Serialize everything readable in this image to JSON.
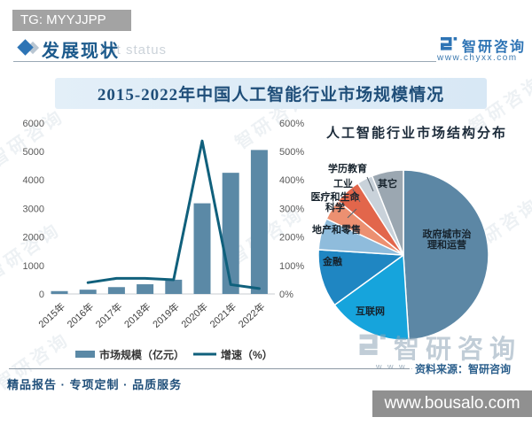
{
  "badge": {
    "text": "TG: MYYJJPP"
  },
  "header": {
    "title": "发展现状"
  },
  "brand": {
    "name": "智研咨询",
    "url": "www.chyxx.com"
  },
  "banner": {
    "title": "2015-2022年中国人工智能行业市场规模情况"
  },
  "chart_data": [
    {
      "type": "bar",
      "subtype": "bar-line-combo",
      "categories": [
        "2015年",
        "2016年",
        "2017年",
        "2018年",
        "2019年",
        "2020年",
        "2021年",
        "2022年"
      ],
      "series": [
        {
          "name": "市场规模（亿元）",
          "type": "bar",
          "axis": "left",
          "values": [
            100,
            150,
            240,
            340,
            500,
            3180,
            4250,
            5050
          ],
          "color": "#5b89a6"
        },
        {
          "name": "增速（%）",
          "type": "line",
          "axis": "right",
          "values": [
            null,
            40,
            55,
            55,
            50,
            540,
            33,
            19
          ],
          "color": "#10607c"
        }
      ],
      "left_axis": {
        "min": 0,
        "max": 6000,
        "ticks": [
          "0",
          "1000",
          "2000",
          "3000",
          "4000",
          "5000",
          "6000"
        ]
      },
      "right_axis": {
        "min": 0,
        "max": 600,
        "ticks": [
          "0%",
          "100%",
          "200%",
          "300%",
          "400%",
          "500%",
          "600%"
        ]
      },
      "grid": false,
      "legend_position": "bottom"
    },
    {
      "type": "pie",
      "title": "人工智能行业市场结构分布",
      "slices": [
        {
          "label": "政府城市治理和运营",
          "value": 49,
          "color": "#5c87a5"
        },
        {
          "label": "互联网",
          "value": 16,
          "color": "#16a4dc"
        },
        {
          "label": "金融",
          "value": 11,
          "color": "#1f86c2"
        },
        {
          "label": "地产和零售",
          "value": 6,
          "color": "#8fbcdc"
        },
        {
          "label": "医疗和生命科学",
          "value": 4,
          "color": "#ec9071"
        },
        {
          "label": "工业",
          "value": 5,
          "color": "#e2664b"
        },
        {
          "label": "学历教育",
          "value": 3,
          "color": "#c9d2da"
        },
        {
          "label": "其它",
          "value": 6,
          "color": "#9ba7b1"
        }
      ]
    }
  ],
  "footer": {
    "left": "精品报告 · 专项定制 · 品质服务",
    "source": "资料来源：智研咨询",
    "overlay": "www.bousalo.com"
  },
  "watermark": {
    "header_text": "ent status",
    "tile_text": "智研咨询",
    "big_text": "智研咨询",
    "www_text": "w w w ."
  }
}
